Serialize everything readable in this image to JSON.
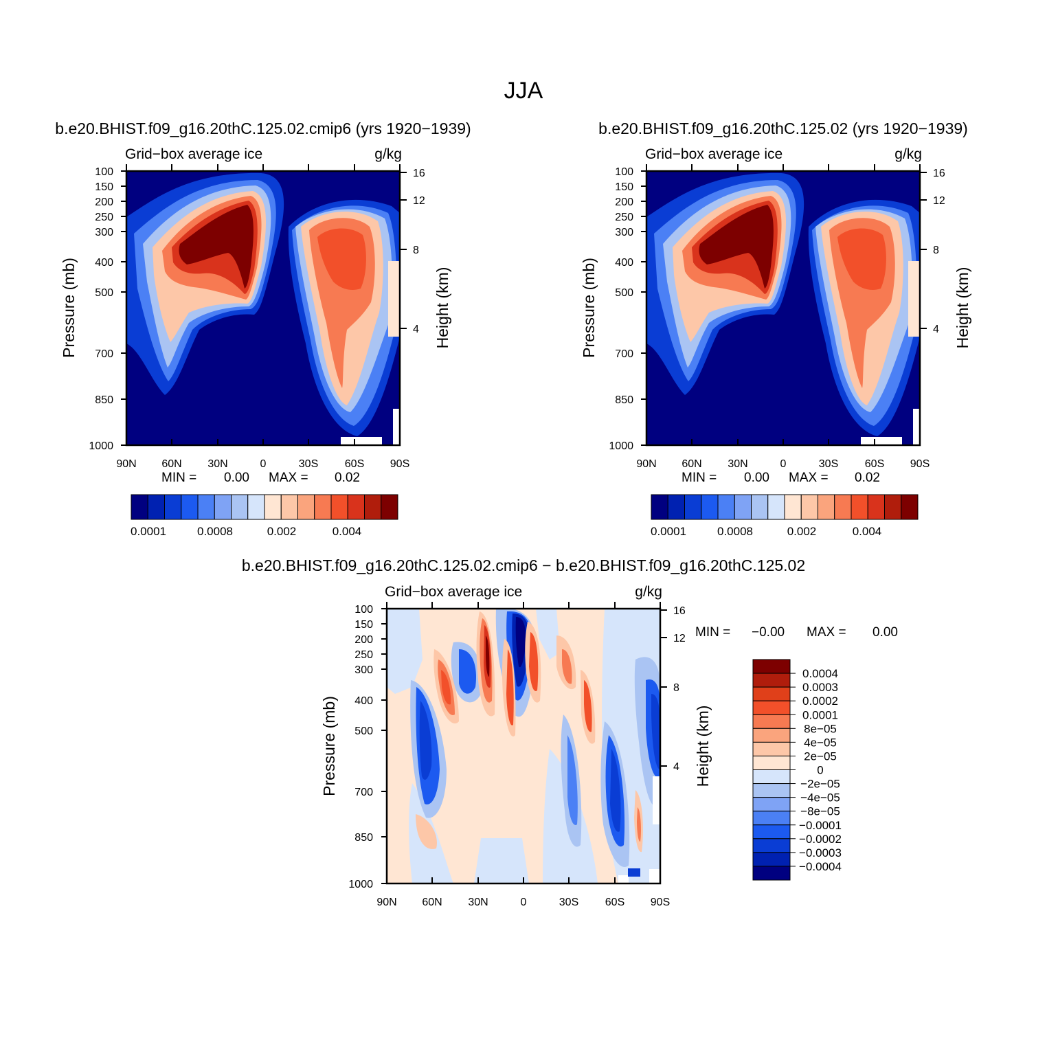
{
  "figure": {
    "title": "JJA"
  },
  "colors": {
    "seq": [
      "#000080",
      "#0021b1",
      "#0a3dd4",
      "#1c5af0",
      "#4b80f5",
      "#7fa3f5",
      "#aac4f3",
      "#d6e5fb",
      "#ffe6d3",
      "#fdc7a8",
      "#faa47d",
      "#f77a52",
      "#f2502a",
      "#d9331c",
      "#b01d0c",
      "#7d0000"
    ],
    "div": [
      "#7d0000",
      "#b01d0c",
      "#e0401a",
      "#f2502a",
      "#f77a52",
      "#faa47d",
      "#fdc7a8",
      "#ffe6d3",
      "#d6e5fb",
      "#aac4f3",
      "#7fa3f5",
      "#4b80f5",
      "#1c5af0",
      "#0a3dd4",
      "#0021b1",
      "#000080"
    ]
  },
  "chart_data": [
    {
      "type": "heatmap",
      "panel": "top-left",
      "title": "b.e20.BHIST.f09_g16.20thC.125.02.cmip6 (yrs 1920−1939)",
      "subtitle_left": "Grid−box average ice",
      "subtitle_right": "g/kg",
      "ylabel": "Pressure (mb)",
      "y2label": "Height (km)",
      "xticks": [
        "90N",
        "60N",
        "30N",
        "0",
        "30S",
        "60S",
        "90S"
      ],
      "yticks": [
        "100",
        "150",
        "200",
        "250",
        "300",
        "400",
        "500",
        "700",
        "850",
        "1000"
      ],
      "y2ticks": [
        "16",
        "12",
        "8",
        "4"
      ],
      "xlim": [
        90,
        -90
      ],
      "ylim": [
        1000,
        100
      ],
      "min_label": "MIN =",
      "min_value": "0.00",
      "max_label": "MAX =",
      "max_value": "0.02",
      "colorbar_labels": [
        "0.0001",
        "0.0008",
        "0.002",
        "0.004"
      ]
    },
    {
      "type": "heatmap",
      "panel": "top-right",
      "title": "b.e20.BHIST.f09_g16.20thC.125.02 (yrs 1920−1939)",
      "subtitle_left": "Grid−box average ice",
      "subtitle_right": "g/kg",
      "ylabel": "Pressure (mb)",
      "y2label": "Height (km)",
      "xticks": [
        "90N",
        "60N",
        "30N",
        "0",
        "30S",
        "60S",
        "90S"
      ],
      "yticks": [
        "100",
        "150",
        "200",
        "250",
        "300",
        "400",
        "500",
        "700",
        "850",
        "1000"
      ],
      "y2ticks": [
        "16",
        "12",
        "8",
        "4"
      ],
      "xlim": [
        90,
        -90
      ],
      "ylim": [
        1000,
        100
      ],
      "min_label": "MIN =",
      "min_value": "0.00",
      "max_label": "MAX =",
      "max_value": "0.02",
      "colorbar_labels": [
        "0.0001",
        "0.0008",
        "0.002",
        "0.004"
      ]
    },
    {
      "type": "heatmap",
      "panel": "bottom",
      "title": "b.e20.BHIST.f09_g16.20thC.125.02.cmip6 − b.e20.BHIST.f09_g16.20thC.125.02",
      "subtitle_left": "Grid−box average ice",
      "subtitle_right": "g/kg",
      "ylabel": "Pressure (mb)",
      "y2label": "Height (km)",
      "xticks": [
        "90N",
        "60N",
        "30N",
        "0",
        "30S",
        "60S",
        "90S"
      ],
      "yticks": [
        "100",
        "150",
        "200",
        "250",
        "300",
        "400",
        "500",
        "700",
        "850",
        "1000"
      ],
      "y2ticks": [
        "16",
        "12",
        "8",
        "4"
      ],
      "xlim": [
        90,
        -90
      ],
      "ylim": [
        1000,
        100
      ],
      "min_label": "MIN =",
      "min_value": "−0.00",
      "max_label": "MAX =",
      "max_value": "0.00",
      "colorbar_labels": [
        "0.0004",
        "0.0003",
        "0.0002",
        "0.0001",
        "8e−05",
        "4e−05",
        "2e−05",
        "0",
        "−2e−05",
        "−4e−05",
        "−8e−05",
        "−0.0001",
        "−0.0002",
        "−0.0003",
        "−0.0004"
      ]
    }
  ]
}
